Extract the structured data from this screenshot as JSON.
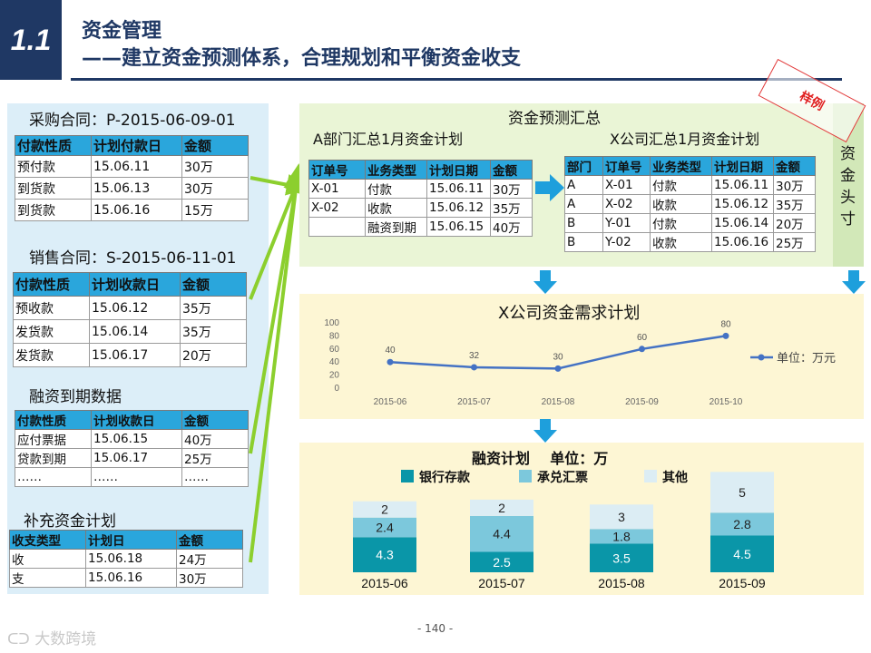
{
  "header": {
    "section_number": "1.1",
    "title": "资金管理",
    "subtitle": "——建立资金预测体系，合理规划和平衡资金收支"
  },
  "stamp": "样例",
  "page_number": "- 140 -",
  "watermark": "大数跨境",
  "left": {
    "purchase": {
      "title": "采购合同：P-2015-06-09-01",
      "headers": [
        "付款性质",
        "计划付款日",
        "金额"
      ],
      "rows": [
        [
          "预付款",
          "15.06.11",
          "30万"
        ],
        [
          "到货款",
          "15.06.13",
          "30万"
        ],
        [
          "到货款",
          "15.06.16",
          "15万"
        ]
      ]
    },
    "sales": {
      "title": "销售合同：S-2015-06-11-01",
      "headers": [
        "付款性质",
        "计划收款日",
        "金额"
      ],
      "rows": [
        [
          "预收款",
          "15.06.12",
          "35万"
        ],
        [
          "发货款",
          "15.06.14",
          "35万"
        ],
        [
          "发货款",
          "15.06.17",
          "20万"
        ]
      ]
    },
    "financing": {
      "title": "融资到期数据",
      "headers": [
        "付款性质",
        "计划收款日",
        "金额"
      ],
      "rows": [
        [
          "应付票据",
          "15.06.15",
          "40万"
        ],
        [
          "贷款到期",
          "15.06.17",
          "25万"
        ],
        [
          "……",
          "……",
          "……"
        ]
      ]
    },
    "supplement": {
      "title": "补充资金计划",
      "headers": [
        "收支类型",
        "计划日",
        "金额"
      ],
      "rows": [
        [
          "收",
          "15.06.18",
          "24万"
        ],
        [
          "支",
          "15.06.16",
          "30万"
        ]
      ]
    }
  },
  "forecast": {
    "title": "资金预测汇总",
    "deptA": {
      "title": "A部门汇总1月资金计划",
      "headers": [
        "订单号",
        "业务类型",
        "计划日期",
        "金额"
      ],
      "rows": [
        [
          "X-01",
          "付款",
          "15.06.11",
          "30万"
        ],
        [
          "X-02",
          "收款",
          "15.06.12",
          "35万"
        ],
        [
          "",
          "融资到期",
          "15.06.15",
          "40万"
        ]
      ]
    },
    "companyX": {
      "title": "X公司汇总1月资金计划",
      "headers": [
        "部门",
        "订单号",
        "业务类型",
        "计划日期",
        "金额"
      ],
      "rows": [
        [
          "A",
          "X-01",
          "付款",
          "15.06.11",
          "30万"
        ],
        [
          "A",
          "X-02",
          "收款",
          "15.06.12",
          "35万"
        ],
        [
          "B",
          "Y-01",
          "付款",
          "15.06.14",
          "20万"
        ],
        [
          "B",
          "Y-02",
          "收款",
          "15.06.16",
          "25万"
        ]
      ]
    },
    "side_label": "资金头寸"
  },
  "colors": {
    "header_navy": "#1f3864",
    "table_header": "#2aa6dc",
    "line": "#4472c4",
    "bank": "#0a96a8",
    "acceptance": "#7cc8dc",
    "other": "#dcedf4"
  },
  "chart_data": [
    {
      "type": "line",
      "title": "X公司资金需求计划",
      "categories": [
        "2015-06",
        "2015-07",
        "2015-08",
        "2015-09",
        "2015-10"
      ],
      "series": [
        {
          "name": "单位：万元",
          "values": [
            40,
            32,
            30,
            60,
            80
          ]
        }
      ],
      "ylim": [
        0,
        100
      ],
      "yticks": [
        0,
        20,
        40,
        60,
        80,
        100
      ],
      "legend": "right",
      "grid": false
    },
    {
      "type": "bar",
      "stacked": true,
      "title": "融资计划    单位：万",
      "categories": [
        "2015-06",
        "2015-07",
        "2015-08",
        "2015-09"
      ],
      "series": [
        {
          "name": "银行存款",
          "values": [
            4.3,
            2.5,
            3.5,
            4.5
          ]
        },
        {
          "name": "承兑汇票",
          "values": [
            2.4,
            4.4,
            1.8,
            2.8
          ]
        },
        {
          "name": "其他",
          "values": [
            2,
            2,
            3,
            5
          ]
        }
      ],
      "legend": "top"
    }
  ]
}
